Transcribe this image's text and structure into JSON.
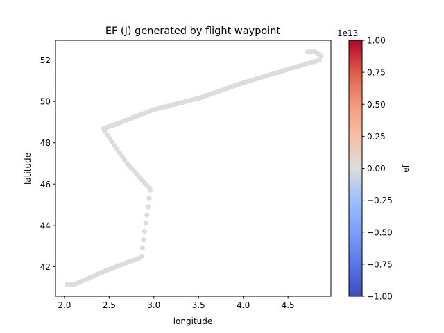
{
  "chart_data": {
    "type": "scatter",
    "title": "EF (J) generated by flight waypoint",
    "xlabel": "longitude",
    "ylabel": "latitude",
    "xlim": [
      1.9,
      4.98
    ],
    "ylim": [
      40.57,
      52.96
    ],
    "xticks": [
      "2.0",
      "2.5",
      "3.0",
      "3.5",
      "4.0",
      "4.5"
    ],
    "xtick_values": [
      2.0,
      2.5,
      3.0,
      3.5,
      4.0,
      4.5
    ],
    "yticks": [
      "42",
      "44",
      "46",
      "48",
      "50",
      "52"
    ],
    "ytick_values": [
      42,
      44,
      46,
      48,
      50,
      52
    ],
    "grid": false,
    "point_color": "#dddcdc",
    "colorbar": {
      "label": "ef",
      "multiplier": "1e13",
      "min": -1.0,
      "max": 1.0,
      "colormap": "coolwarm",
      "ticks": [
        "1.00",
        "0.75",
        "0.50",
        "0.25",
        "0.00",
        "−0.25",
        "−0.50",
        "−0.75",
        "−1.00"
      ],
      "tick_values": [
        1.0,
        0.75,
        0.5,
        0.25,
        0.0,
        -0.25,
        -0.5,
        -0.75,
        -1.0
      ]
    },
    "polyline": [
      [
        2.03,
        41.13
      ],
      [
        2.1,
        41.13
      ],
      [
        2.25,
        41.4
      ],
      [
        2.4,
        41.7
      ],
      [
        2.55,
        41.95
      ],
      [
        2.7,
        42.2
      ],
      [
        2.83,
        42.4
      ],
      [
        2.86,
        42.5
      ],
      [
        2.96,
        45.7
      ],
      [
        2.95,
        45.8
      ],
      [
        2.7,
        47.0
      ],
      [
        2.45,
        48.55
      ],
      [
        2.44,
        48.7
      ],
      [
        2.55,
        48.85
      ],
      [
        3.0,
        49.6
      ],
      [
        3.5,
        50.15
      ],
      [
        4.0,
        50.9
      ],
      [
        4.5,
        51.55
      ],
      [
        4.85,
        52.0
      ],
      [
        4.87,
        52.2
      ],
      [
        4.8,
        52.4
      ],
      [
        4.72,
        52.4
      ]
    ],
    "spacing": 0.03
  }
}
